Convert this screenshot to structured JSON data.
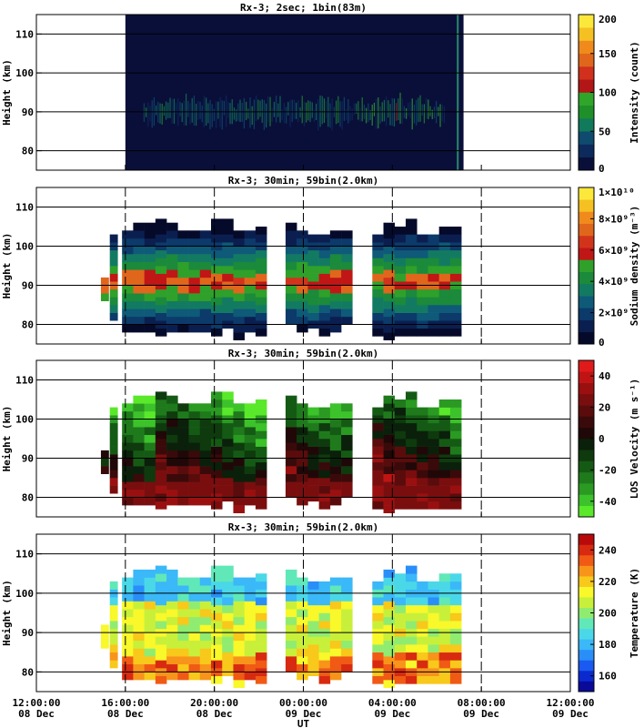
{
  "x_axis": {
    "label": "UT",
    "ticks": [
      {
        "time": "12:00:00",
        "date": "08 Dec",
        "hour": 0
      },
      {
        "time": "16:00:00",
        "date": "08 Dec",
        "hour": 4
      },
      {
        "time": "20:00:00",
        "date": "08 Dec",
        "hour": 8
      },
      {
        "time": "00:00:00",
        "date": "09 Dec",
        "hour": 12
      },
      {
        "time": "04:00:00",
        "date": "09 Dec",
        "hour": 16
      },
      {
        "time": "08:00:00",
        "date": "09 Dec",
        "hour": 20
      },
      {
        "time": "12:00:00",
        "date": "09 Dec",
        "hour": 24
      }
    ],
    "range_hours_since_12UT_08Dec": [
      0,
      24
    ]
  },
  "chart_data": [
    {
      "type": "heatmap",
      "title": "Rx-3;  2sec; 1bin(83m)",
      "ylabel": "Height (km)",
      "ylim": [
        75,
        115
      ],
      "yticks": [
        80,
        90,
        100,
        110
      ],
      "colorbar": {
        "label": "Intensity (count)",
        "range": [
          0,
          200
        ],
        "ticks": [
          "0",
          "50",
          "100",
          "150",
          "200"
        ],
        "colors": [
          "#0a0f3a",
          "#0d2a5c",
          "#0e4b6e",
          "#117a5a",
          "#1f8f2a",
          "#2fa52a",
          "#b21616",
          "#d0301c",
          "#e0661c",
          "#f08a1c",
          "#f5c021",
          "#fbe83a"
        ]
      },
      "data_window_hours": [
        4.0,
        19.2
      ],
      "layer_peak_km": 90,
      "gridlines_km": [
        80,
        90,
        100,
        110
      ]
    },
    {
      "type": "heatmap",
      "title": "Rx-3; 30min; 59bin(2.0km)",
      "ylabel": "Height (km)",
      "ylim": [
        75,
        115
      ],
      "yticks": [
        80,
        90,
        100,
        110
      ],
      "colorbar": {
        "label": "Sodium density (m⁻³)",
        "range": [
          0,
          10000000000.0
        ],
        "ticks": [
          "0",
          "2×10⁹",
          "4×10⁹",
          "6×10⁹",
          "8×10⁹",
          "1×10¹⁰"
        ],
        "colors": [
          "#050a2a",
          "#0a1f50",
          "#0c3a6a",
          "#0e5a78",
          "#137a62",
          "#1b8a3a",
          "#2fa02a",
          "#c01616",
          "#d2341b",
          "#e0661c",
          "#f08a1c",
          "#f5c021",
          "#fbe83a"
        ]
      },
      "layer_peak_km": 90,
      "gridlines_km": [
        80,
        90,
        100,
        110
      ]
    },
    {
      "type": "heatmap",
      "title": "Rx-3; 30min; 59bin(2.0km)",
      "ylabel": "Height (km)",
      "ylim": [
        75,
        115
      ],
      "yticks": [
        80,
        90,
        100,
        110
      ],
      "colorbar": {
        "label": "LOS Velocity (m s⁻¹)",
        "range": [
          -50,
          50
        ],
        "ticks": [
          "-40",
          "-20",
          "0",
          "20",
          "40"
        ],
        "colors": [
          "#5ae82a",
          "#3cc22a",
          "#2a9a22",
          "#1f7a1c",
          "#155a14",
          "#0e3a0e",
          "#0a200a",
          "#200808",
          "#3a0a0a",
          "#5a0c0c",
          "#7a0e0e",
          "#9a1010",
          "#c01414",
          "#e01a1a"
        ]
      },
      "gridlines_km": [
        80,
        90,
        100,
        110
      ]
    },
    {
      "type": "heatmap",
      "title": "Rx-3; 30min; 59bin(2.0km)",
      "ylabel": "Height (km)",
      "ylim": [
        75,
        115
      ],
      "yticks": [
        80,
        90,
        100,
        110
      ],
      "colorbar": {
        "label": "Temperature (K)",
        "range": [
          150,
          250
        ],
        "ticks": [
          "160",
          "180",
          "200",
          "220",
          "240"
        ],
        "colors": [
          "#0a0a9a",
          "#0a2ad0",
          "#1a5af0",
          "#2a8ef8",
          "#3ab8f8",
          "#4ad8e8",
          "#60e8b8",
          "#90ec70",
          "#c8f03a",
          "#f8f82a",
          "#f8c81a",
          "#f8941a",
          "#f05a14",
          "#d82a10",
          "#b80a0a"
        ]
      },
      "gridlines_km": [
        80,
        90,
        100,
        110
      ]
    }
  ]
}
